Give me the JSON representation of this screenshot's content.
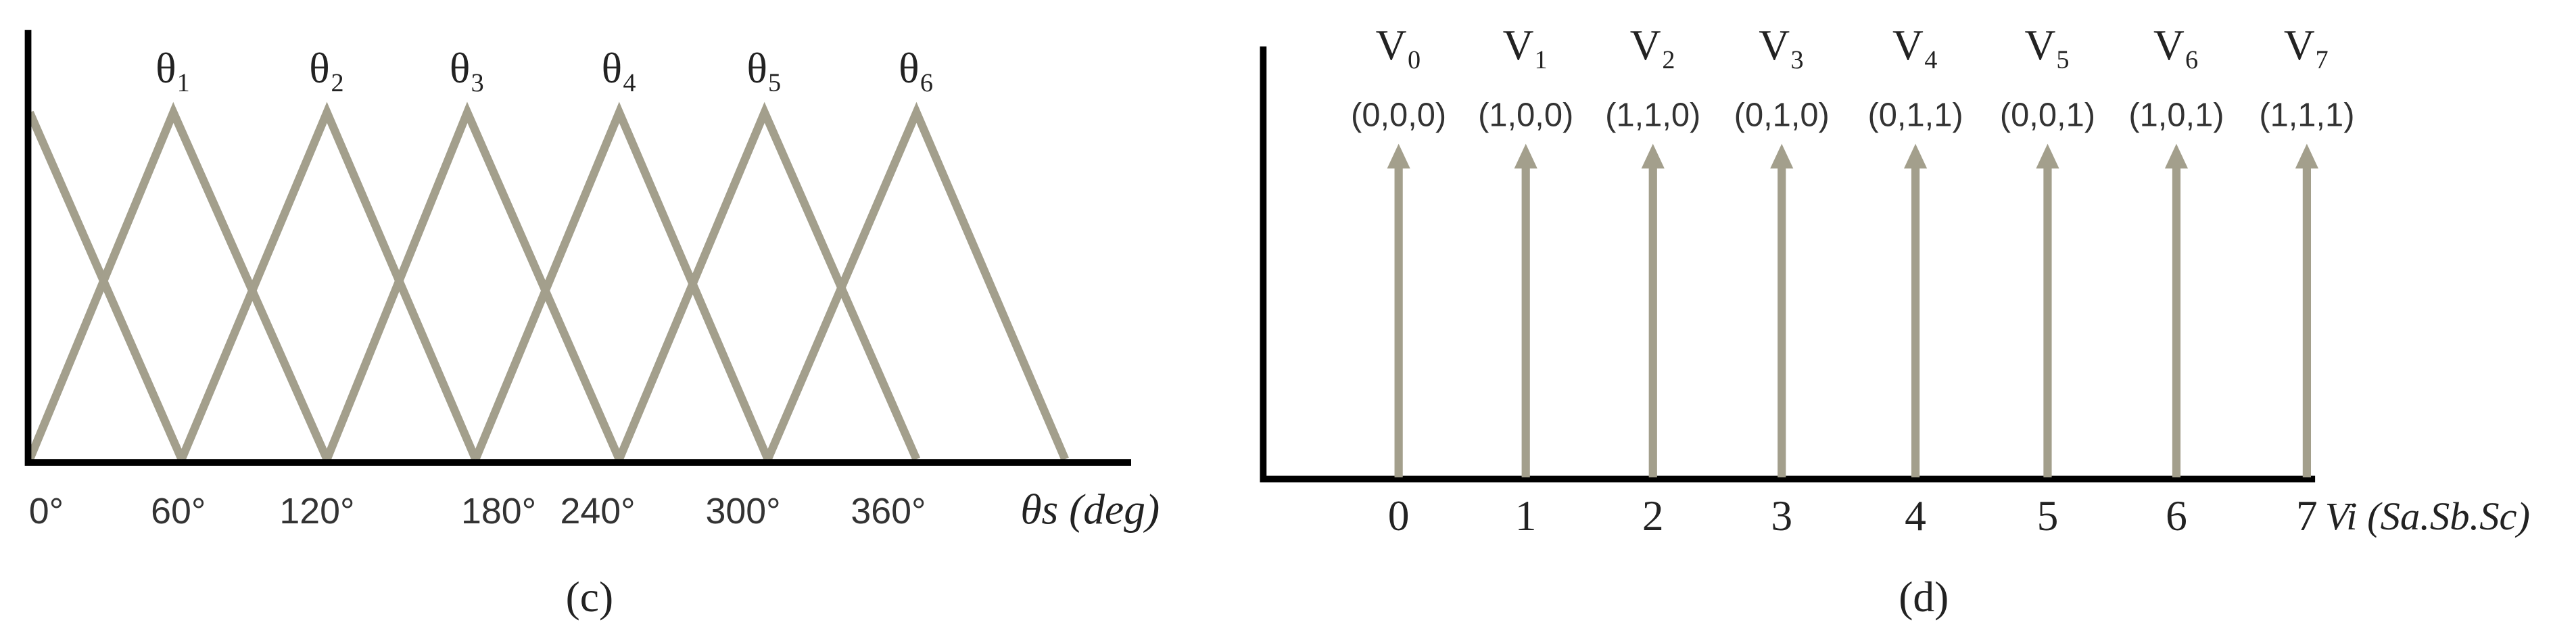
{
  "panel_c": {
    "membership_labels": [
      "θ₁",
      "θ₂",
      "θ₃",
      "θ₄",
      "θ₅",
      "θ₆"
    ],
    "tick_labels": [
      "0°",
      "60°",
      "120°",
      "180°",
      "240°",
      "300°",
      "360°"
    ],
    "axis_label": "θs (deg)",
    "caption": "(c)"
  },
  "panel_d": {
    "vectors": [
      {
        "label": "V₀",
        "state": "(0,0,0)",
        "index": "0"
      },
      {
        "label": "V₁",
        "state": "(1,0,0)",
        "index": "1"
      },
      {
        "label": "V₂",
        "state": "(1,1,0)",
        "index": "2"
      },
      {
        "label": "V₃",
        "state": "(0,1,0)",
        "index": "3"
      },
      {
        "label": "V₄",
        "state": "(0,1,1)",
        "index": "4"
      },
      {
        "label": "V₅",
        "state": "(0,0,1)",
        "index": "5"
      },
      {
        "label": "V₆",
        "state": "(1,0,1)",
        "index": "6"
      },
      {
        "label": "V₇",
        "state": "(1,1,1)",
        "index": "7"
      }
    ],
    "axis_label": "Vi (Sa.Sb.Sc)",
    "caption": "(d)"
  }
}
